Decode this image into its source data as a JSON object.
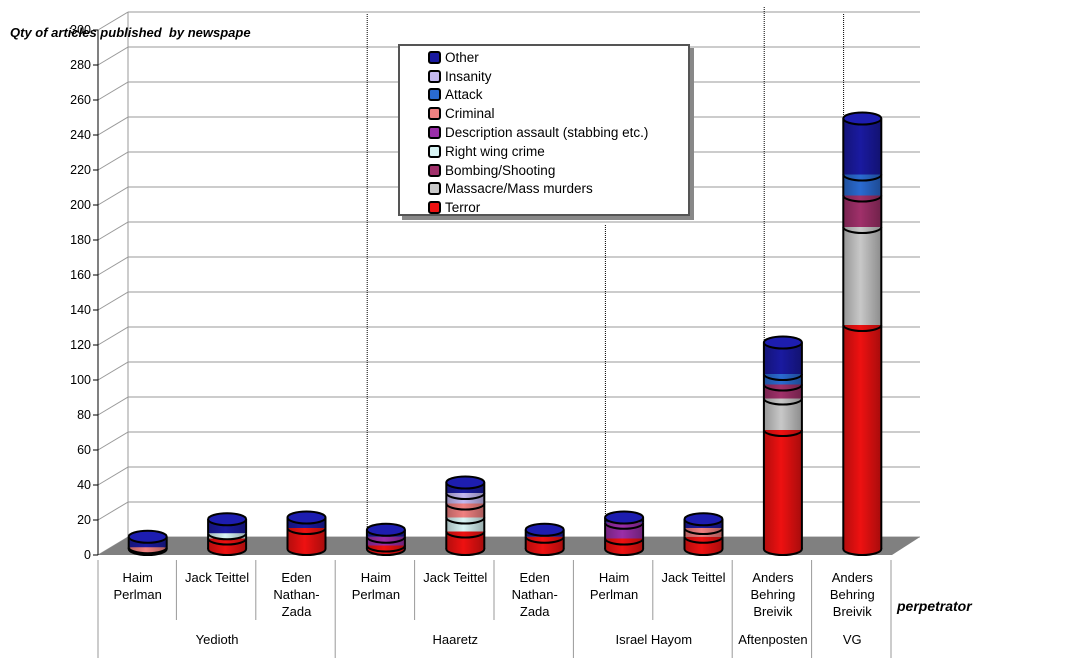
{
  "chart_data": {
    "type": "bar",
    "stacked": true,
    "three_d": true,
    "ylabel": "Qty of articles published  by newspape",
    "xlabel": "perpetrator",
    "ylim": [
      0,
      300
    ],
    "yticks": [
      0,
      20,
      40,
      60,
      80,
      100,
      120,
      140,
      160,
      180,
      200,
      220,
      240,
      260,
      280,
      300
    ],
    "grid": true,
    "legend_position": "top-center",
    "categories": [
      {
        "perpetrator": "Haim Perlman",
        "newspaper": "Yedioth"
      },
      {
        "perpetrator": "Jack Teittel",
        "newspaper": "Yedioth"
      },
      {
        "perpetrator": "Eden Nathan-Zada",
        "newspaper": "Yedioth"
      },
      {
        "perpetrator": "Haim Perlman",
        "newspaper": "Haaretz"
      },
      {
        "perpetrator": "Jack Teittel",
        "newspaper": "Haaretz"
      },
      {
        "perpetrator": "Eden Nathan-Zada",
        "newspaper": "Haaretz"
      },
      {
        "perpetrator": "Haim Perlman",
        "newspaper": "Israel Hayom"
      },
      {
        "perpetrator": "Jack Teittel",
        "newspaper": "Israel Hayom"
      },
      {
        "perpetrator": "Anders Behring Breivik",
        "newspaper": "Aftenposten"
      },
      {
        "perpetrator": "Anders Behring Breivik",
        "newspaper": "VG"
      }
    ],
    "perpetrator_labels": [
      [
        "Haim",
        "Perlman"
      ],
      [
        "Jack Teittel"
      ],
      [
        "Eden",
        "Nathan-",
        "Zada"
      ],
      [
        "Haim",
        "Perlman"
      ],
      [
        "Jack Teittel"
      ],
      [
        "Eden",
        "Nathan-",
        "Zada"
      ],
      [
        "Haim",
        "Perlman"
      ],
      [
        "Jack Teittel"
      ],
      [
        "Anders",
        "Behring",
        "Breivik"
      ],
      [
        "Anders",
        "Behring",
        "Breivik"
      ]
    ],
    "newspapers": [
      {
        "name": "Yedioth",
        "span": [
          0,
          2
        ]
      },
      {
        "name": "Haaretz",
        "span": [
          3,
          5
        ]
      },
      {
        "name": "Israel Hayom",
        "span": [
          6,
          7
        ]
      },
      {
        "name": "Aftenposten",
        "span": [
          8,
          8
        ]
      },
      {
        "name": "VG",
        "span": [
          9,
          9
        ]
      }
    ],
    "series": [
      {
        "name": "Terror",
        "color": "#ee1111",
        "values": [
          0,
          6,
          12,
          2,
          10,
          7,
          6,
          7,
          68,
          128
        ]
      },
      {
        "name": "Massacre/Mass murders",
        "color": "#c8c8c8",
        "values": [
          0,
          0,
          0,
          0,
          0,
          0,
          0,
          0,
          18,
          56
        ]
      },
      {
        "name": "Bombing/Shooting",
        "color": "#a0306a",
        "values": [
          0,
          0,
          0,
          0,
          0,
          0,
          0,
          0,
          8,
          18
        ]
      },
      {
        "name": "Right wing crime",
        "color": "#d8f4f4",
        "values": [
          0,
          3,
          0,
          0,
          8,
          0,
          0,
          0,
          0,
          0
        ]
      },
      {
        "name": "Description assault (stabbing etc.)",
        "color": "#9a2ea8",
        "values": [
          0,
          0,
          0,
          5,
          0,
          0,
          9,
          0,
          0,
          0
        ]
      },
      {
        "name": "Criminal",
        "color": "#f08080",
        "values": [
          1,
          0,
          0,
          0,
          8,
          0,
          0,
          5,
          0,
          0
        ]
      },
      {
        "name": "Attack",
        "color": "#2a6ad0",
        "values": [
          0,
          0,
          0,
          0,
          0,
          0,
          0,
          0,
          6,
          12
        ]
      },
      {
        "name": "Insanity",
        "color": "#c4b8f0",
        "values": [
          0,
          0,
          0,
          0,
          6,
          0,
          0,
          0,
          0,
          0
        ]
      },
      {
        "name": "Other",
        "color": "#1a1aa0",
        "values": [
          6,
          8,
          6,
          4,
          6,
          4,
          3,
          5,
          18,
          32
        ]
      }
    ]
  }
}
